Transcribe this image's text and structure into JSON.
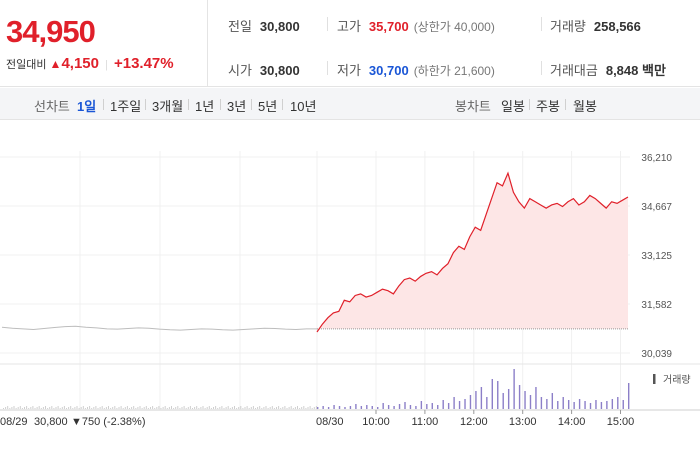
{
  "quote": {
    "price": "34,950",
    "change_label": "전일대비",
    "change_arrow": "▲",
    "change_value": "4,150",
    "change_pct": "+13.47%"
  },
  "stats": {
    "prev_close": {
      "label": "전일",
      "value": "30,800"
    },
    "high": {
      "label": "고가",
      "value": "35,700",
      "sub": "(상한가 40,000)"
    },
    "volume": {
      "label": "거래량",
      "value": "258,566"
    },
    "open": {
      "label": "시가",
      "value": "30,800"
    },
    "low": {
      "label": "저가",
      "value": "30,700",
      "sub": "(하한가 21,600)"
    },
    "amount": {
      "label": "거래대금",
      "value": "8,848 백만"
    }
  },
  "toolbar": {
    "line_chart_label": "선차트",
    "periods": [
      "1일",
      "1주일",
      "3개월",
      "1년",
      "3년",
      "5년",
      "10년"
    ],
    "selected_period": "1일",
    "candle_chart_label": "봉차트",
    "candles": [
      "일봉",
      "주봉",
      "월봉"
    ]
  },
  "colors": {
    "up": "#e0202a",
    "down": "#1a56d6",
    "fill": "#fde6e6",
    "prev_day": "#bdbdbd",
    "volume": "#8c7fc8"
  },
  "chart_data": {
    "type": "line",
    "y_ticks": [
      "36,210",
      "34,667",
      "33,125",
      "31,582",
      "30,039"
    ],
    "ylim": [
      30039,
      36210
    ],
    "volume_legend": "거래량",
    "prev_day": {
      "date_label": "08/29",
      "close_info": "30,800",
      "change_info": "▼750 (-2.38%)",
      "values": [
        30850,
        30820,
        30800,
        30780,
        30810,
        30840,
        30870,
        30880,
        30850,
        30830,
        30800,
        30790,
        30810,
        30830,
        30820,
        30790,
        30770,
        30760,
        30780,
        30800,
        30790,
        30770,
        30760,
        30780,
        30800,
        30820,
        30810,
        30790,
        30780,
        30800,
        30800
      ]
    },
    "today": {
      "date_label": "08/30",
      "times": [
        "10:00",
        "11:00",
        "12:00",
        "13:00",
        "14:00",
        "15:00"
      ],
      "values": [
        30700,
        30950,
        31150,
        31300,
        31350,
        31700,
        31650,
        31850,
        31900,
        31800,
        31850,
        31950,
        32050,
        32000,
        31900,
        32150,
        32350,
        32400,
        32300,
        32450,
        32550,
        32600,
        32500,
        32700,
        32850,
        33200,
        33400,
        33300,
        33700,
        34000,
        33900,
        34400,
        34900,
        35400,
        35300,
        35700,
        35100,
        34800,
        34600,
        34900,
        34800,
        34700,
        34600,
        34700,
        34750,
        34650,
        34800,
        34900,
        34700,
        34800,
        35000,
        34900,
        34750,
        34600,
        34800,
        34750,
        34850,
        34950
      ]
    }
  }
}
